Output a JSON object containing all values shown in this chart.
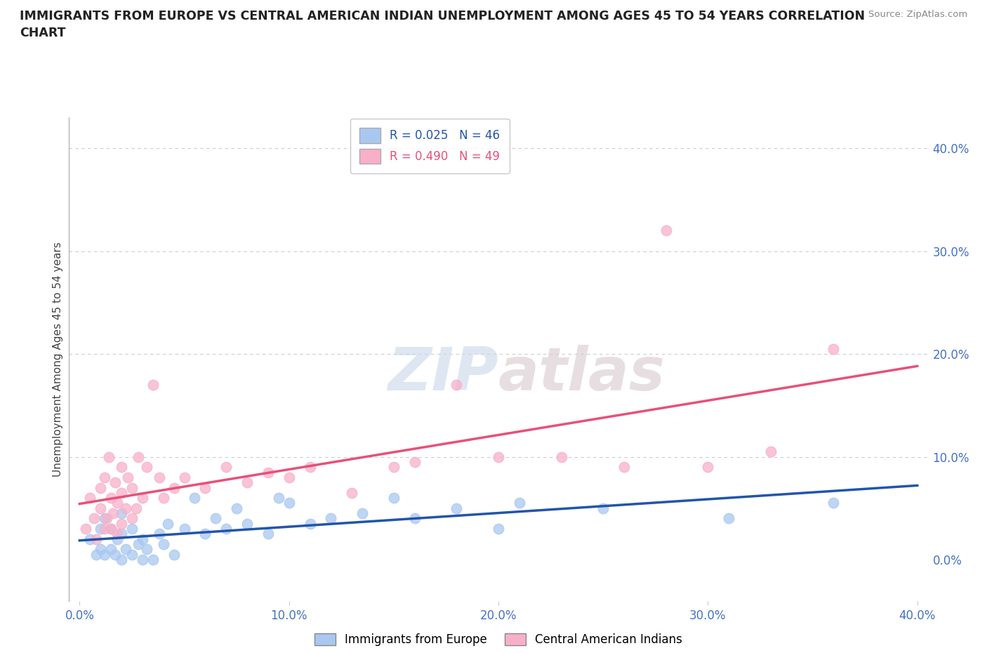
{
  "title": "IMMIGRANTS FROM EUROPE VS CENTRAL AMERICAN INDIAN UNEMPLOYMENT AMONG AGES 45 TO 54 YEARS CORRELATION\nCHART",
  "source": "Source: ZipAtlas.com",
  "ylabel": "Unemployment Among Ages 45 to 54 years",
  "xlim": [
    -0.005,
    0.405
  ],
  "ylim": [
    -0.04,
    0.43
  ],
  "xticks": [
    0.0,
    0.1,
    0.2,
    0.3,
    0.4
  ],
  "yticks_right": [
    0.0,
    0.1,
    0.2,
    0.3,
    0.4
  ],
  "blue_color": "#a8c8f0",
  "pink_color": "#f8b0c8",
  "blue_line_color": "#2255aa",
  "pink_line_color": "#e8507a",
  "blue_R": 0.025,
  "blue_N": 46,
  "pink_R": 0.49,
  "pink_N": 49,
  "background_color": "#ffffff",
  "blue_scatter_x": [
    0.005,
    0.008,
    0.01,
    0.01,
    0.012,
    0.012,
    0.015,
    0.015,
    0.017,
    0.018,
    0.02,
    0.02,
    0.02,
    0.022,
    0.025,
    0.025,
    0.028,
    0.03,
    0.03,
    0.032,
    0.035,
    0.038,
    0.04,
    0.042,
    0.045,
    0.05,
    0.055,
    0.06,
    0.065,
    0.07,
    0.075,
    0.08,
    0.09,
    0.095,
    0.1,
    0.11,
    0.12,
    0.135,
    0.15,
    0.16,
    0.18,
    0.2,
    0.21,
    0.25,
    0.31,
    0.36
  ],
  "blue_scatter_y": [
    0.02,
    0.005,
    0.03,
    0.01,
    0.04,
    0.005,
    0.01,
    0.03,
    0.005,
    0.02,
    0.0,
    0.025,
    0.045,
    0.01,
    0.005,
    0.03,
    0.015,
    0.0,
    0.02,
    0.01,
    0.0,
    0.025,
    0.015,
    0.035,
    0.005,
    0.03,
    0.06,
    0.025,
    0.04,
    0.03,
    0.05,
    0.035,
    0.025,
    0.06,
    0.055,
    0.035,
    0.04,
    0.045,
    0.06,
    0.04,
    0.05,
    0.03,
    0.055,
    0.05,
    0.04,
    0.055
  ],
  "pink_scatter_x": [
    0.003,
    0.005,
    0.007,
    0.008,
    0.01,
    0.01,
    0.012,
    0.012,
    0.013,
    0.014,
    0.015,
    0.015,
    0.016,
    0.017,
    0.018,
    0.018,
    0.02,
    0.02,
    0.02,
    0.022,
    0.023,
    0.025,
    0.025,
    0.027,
    0.028,
    0.03,
    0.032,
    0.035,
    0.038,
    0.04,
    0.045,
    0.05,
    0.06,
    0.07,
    0.08,
    0.09,
    0.1,
    0.11,
    0.13,
    0.15,
    0.16,
    0.18,
    0.2,
    0.23,
    0.26,
    0.28,
    0.3,
    0.33,
    0.36
  ],
  "pink_scatter_y": [
    0.03,
    0.06,
    0.04,
    0.02,
    0.05,
    0.07,
    0.03,
    0.08,
    0.04,
    0.1,
    0.03,
    0.06,
    0.045,
    0.075,
    0.025,
    0.055,
    0.035,
    0.065,
    0.09,
    0.05,
    0.08,
    0.04,
    0.07,
    0.05,
    0.1,
    0.06,
    0.09,
    0.17,
    0.08,
    0.06,
    0.07,
    0.08,
    0.07,
    0.09,
    0.075,
    0.085,
    0.08,
    0.09,
    0.065,
    0.09,
    0.095,
    0.17,
    0.1,
    0.1,
    0.09,
    0.32,
    0.09,
    0.105,
    0.205
  ]
}
